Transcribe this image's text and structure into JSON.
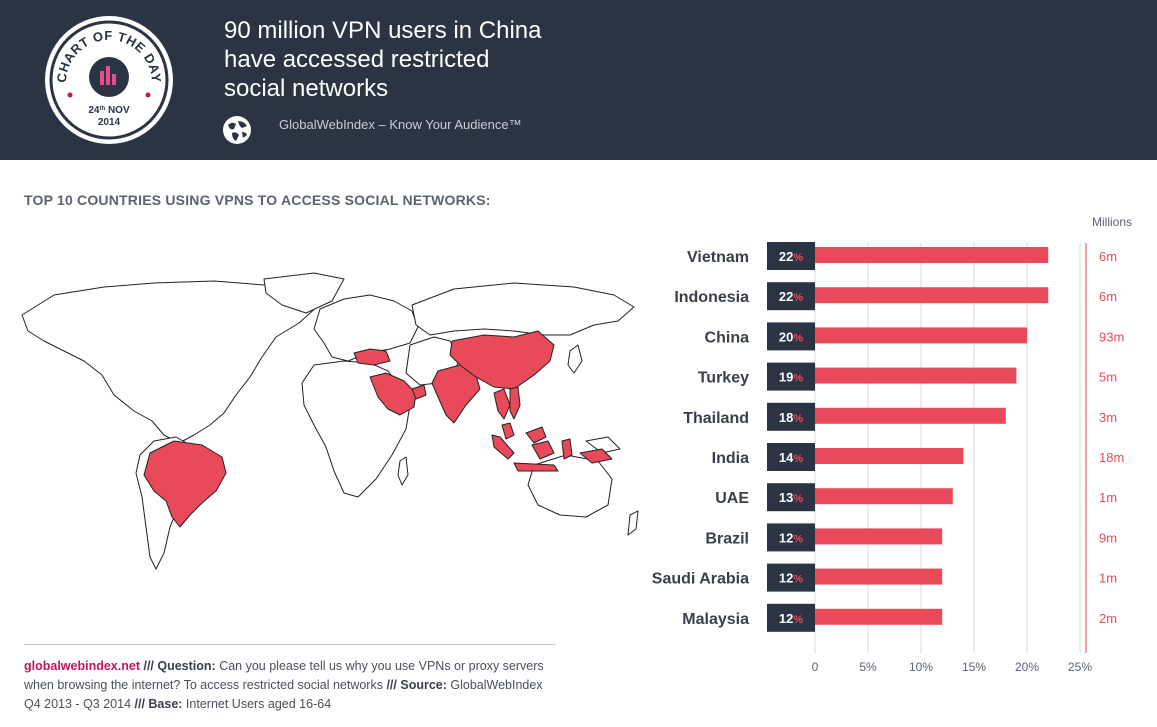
{
  "header": {
    "title": "90 million VPN users in China\nhave accessed restricted\nsocial networks",
    "brand": "GlobalWebIndex – Know Your Audience™",
    "badge": {
      "text": "CHART OF THE DAY",
      "day": "24",
      "day_suffix": "th",
      "month": "NOV",
      "year": "2014"
    }
  },
  "subtitle": "TOP 10 COUNTRIES USING VPNS TO ACCESS SOCIAL NETWORKS:",
  "footer": {
    "site": "globalwebindex.net",
    "sep1": " /// ",
    "question_label": "Question:",
    "question": " Can you please tell us why you use VPNs or proxy servers when browsing the internet? To access restricted social networks ",
    "sep2": " /// ",
    "source_label": "Source:",
    "source": " GlobalWebIndex Q4 2013 - Q3 2014 ",
    "sep3": " /// ",
    "base_label": "Base:",
    "base": " Internet Users aged 16-64"
  },
  "colors": {
    "header_bg": "#2a3442",
    "bar": "#e84a5a",
    "label_box": "#2a3442",
    "accent": "#c2185b",
    "million_text": "#e84a5a",
    "map_highlight": "#e84a5a"
  },
  "chart_data": {
    "type": "bar",
    "orientation": "horizontal",
    "categories": [
      "Vietnam",
      "Indonesia",
      "China",
      "Turkey",
      "Thailand",
      "India",
      "UAE",
      "Brazil",
      "Saudi Arabia",
      "Malaysia"
    ],
    "values": [
      22,
      22,
      20,
      19,
      18,
      14,
      13,
      12,
      12,
      12
    ],
    "value_suffix": "%",
    "millions_label": "Millions",
    "millions": [
      "6m",
      "6m",
      "93m",
      "5m",
      "3m",
      "18m",
      "1m",
      "9m",
      "1m",
      "2m"
    ],
    "xlim": [
      0,
      25
    ],
    "xticks": [
      "0",
      "5%",
      "10%",
      "15%",
      "20%",
      "25%"
    ],
    "grid": true,
    "highlighted_countries": [
      "Vietnam",
      "Indonesia",
      "China",
      "Turkey",
      "Thailand",
      "India",
      "UAE",
      "Brazil",
      "Saudi Arabia",
      "Malaysia"
    ]
  }
}
